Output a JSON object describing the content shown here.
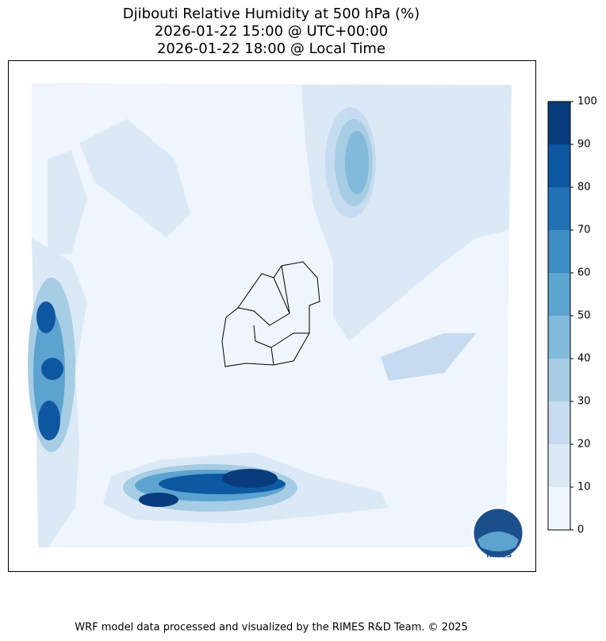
{
  "title": [
    "Djibouti Relative Humidity at 500 hPa (%)",
    "2026-01-22 15:00 @ UTC+00:00",
    "2026-01-22 18:00 @ Local Time"
  ],
  "colorbar": {
    "lim": [
      0,
      100
    ],
    "ticks": [
      0,
      10,
      20,
      30,
      40,
      50,
      60,
      70,
      80,
      90,
      100
    ],
    "colors": [
      "#eef5fc",
      "#dbe9f6",
      "#c6dbef",
      "#a6cde3",
      "#82badb",
      "#5ca3d0",
      "#3e8cc4",
      "#2171b5",
      "#0e57a1",
      "#083c7d"
    ]
  },
  "logo": {
    "label": "RIMES"
  },
  "footer": "WRF model data processed and visualized by the RIMES R&D Team. © 2025"
}
